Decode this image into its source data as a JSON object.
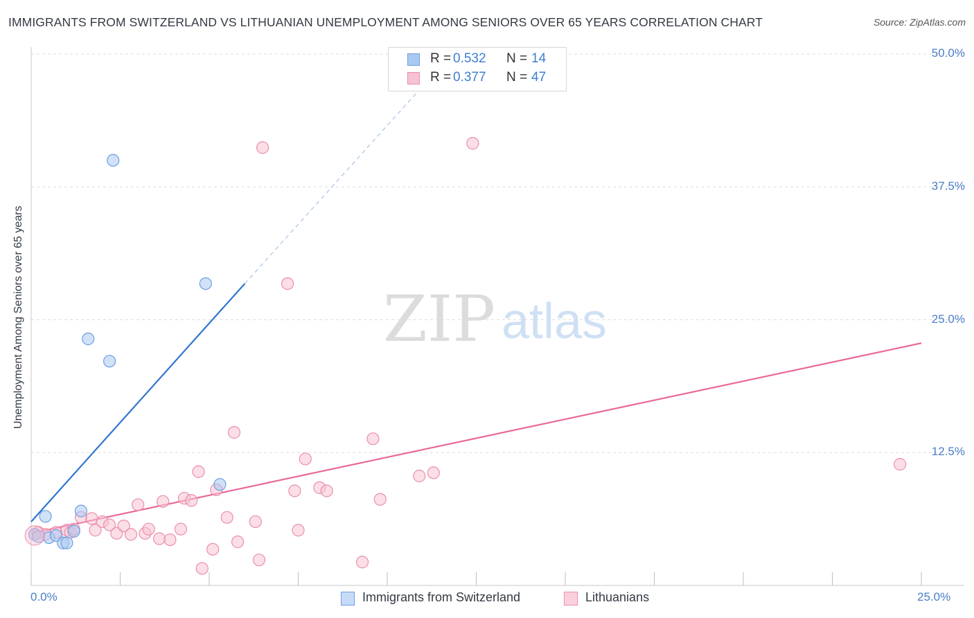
{
  "title": "IMMIGRANTS FROM SWITZERLAND VS LITHUANIAN UNEMPLOYMENT AMONG SENIORS OVER 65 YEARS CORRELATION CHART",
  "source": "Source: ZipAtlas.com",
  "watermark": {
    "zip": "ZIP",
    "atlas": "atlas"
  },
  "legend": {
    "rows": [
      {
        "r_label": "R =",
        "r_value": "0.532",
        "n_label": "N =",
        "n_value": "14",
        "color": "#a9c9f2",
        "border": "#6f9fe0"
      },
      {
        "r_label": "R =",
        "r_value": "0.377",
        "n_label": "N =",
        "n_value": "47",
        "color": "#f7c2d2",
        "border": "#ea8fab"
      }
    ]
  },
  "bottom_legend": [
    {
      "label": "Immigrants from Switzerland",
      "color": "#c5dbf7",
      "border": "#6f9fe0"
    },
    {
      "label": "Lithuanians",
      "color": "#fbd0dd",
      "border": "#ea8fab"
    }
  ],
  "chart_data": {
    "type": "scatter",
    "title": "IMMIGRANTS FROM SWITZERLAND VS LITHUANIAN UNEMPLOYMENT AMONG SENIORS OVER 65 YEARS CORRELATION CHART",
    "xlabel": "",
    "ylabel": "Unemployment Among Seniors over 65 years",
    "xlim": [
      0,
      25
    ],
    "ylim": [
      0,
      50
    ],
    "x_tick_labels": [
      "0.0%",
      "25.0%"
    ],
    "y_ticks": [
      12.5,
      25.0,
      37.5,
      50.0
    ],
    "y_tick_labels": [
      "12.5%",
      "25.0%",
      "37.5%",
      "50.0%"
    ],
    "grid": true,
    "series": [
      {
        "name": "Immigrants from Switzerland",
        "color": "#a9c9f2",
        "edge": "#6f9fe0",
        "line_color": "#2f74d0",
        "points": [
          {
            "x": 0.1,
            "y": 4.8
          },
          {
            "x": 0.2,
            "y": 4.6
          },
          {
            "x": 0.4,
            "y": 6.5
          },
          {
            "x": 0.5,
            "y": 4.5
          },
          {
            "x": 0.7,
            "y": 4.7
          },
          {
            "x": 0.9,
            "y": 4.0
          },
          {
            "x": 1.0,
            "y": 4.0
          },
          {
            "x": 1.2,
            "y": 5.1
          },
          {
            "x": 1.4,
            "y": 7.0
          },
          {
            "x": 1.6,
            "y": 23.2
          },
          {
            "x": 2.2,
            "y": 21.1
          },
          {
            "x": 2.3,
            "y": 40.0
          },
          {
            "x": 4.9,
            "y": 28.4
          },
          {
            "x": 5.3,
            "y": 9.5
          }
        ],
        "trend": {
          "x0": 0,
          "y0": 6.0,
          "x1": 6.0,
          "y1": 28.4,
          "dash_to_x": 11.0,
          "dash_to_y": 47.0
        }
      },
      {
        "name": "Lithuanians",
        "color": "#f7c2d2",
        "edge": "#ea8fab",
        "line_color": "#e8689a",
        "points": [
          {
            "x": 0.1,
            "y": 4.8
          },
          {
            "x": 0.2,
            "y": 5.0
          },
          {
            "x": 0.4,
            "y": 4.8
          },
          {
            "x": 0.7,
            "y": 5.0
          },
          {
            "x": 1.0,
            "y": 5.2
          },
          {
            "x": 1.1,
            "y": 5.0
          },
          {
            "x": 1.2,
            "y": 5.3
          },
          {
            "x": 1.4,
            "y": 6.4
          },
          {
            "x": 1.7,
            "y": 6.3
          },
          {
            "x": 1.8,
            "y": 5.2
          },
          {
            "x": 2.0,
            "y": 6.0
          },
          {
            "x": 2.2,
            "y": 5.7
          },
          {
            "x": 2.4,
            "y": 4.9
          },
          {
            "x": 2.6,
            "y": 5.6
          },
          {
            "x": 2.8,
            "y": 4.8
          },
          {
            "x": 3.0,
            "y": 7.6
          },
          {
            "x": 3.2,
            "y": 4.9
          },
          {
            "x": 3.3,
            "y": 5.3
          },
          {
            "x": 3.6,
            "y": 4.4
          },
          {
            "x": 3.7,
            "y": 7.9
          },
          {
            "x": 3.9,
            "y": 4.3
          },
          {
            "x": 4.2,
            "y": 5.3
          },
          {
            "x": 4.3,
            "y": 8.2
          },
          {
            "x": 4.5,
            "y": 8.0
          },
          {
            "x": 4.7,
            "y": 10.7
          },
          {
            "x": 4.8,
            "y": 1.6
          },
          {
            "x": 5.1,
            "y": 3.4
          },
          {
            "x": 5.2,
            "y": 9.0
          },
          {
            "x": 5.5,
            "y": 6.4
          },
          {
            "x": 5.7,
            "y": 14.4
          },
          {
            "x": 5.8,
            "y": 4.1
          },
          {
            "x": 6.3,
            "y": 6.0
          },
          {
            "x": 6.4,
            "y": 2.4
          },
          {
            "x": 6.5,
            "y": 41.2
          },
          {
            "x": 7.2,
            "y": 28.4
          },
          {
            "x": 7.4,
            "y": 8.9
          },
          {
            "x": 7.5,
            "y": 5.2
          },
          {
            "x": 7.7,
            "y": 11.9
          },
          {
            "x": 8.1,
            "y": 9.2
          },
          {
            "x": 8.3,
            "y": 8.9
          },
          {
            "x": 9.3,
            "y": 2.2
          },
          {
            "x": 9.6,
            "y": 13.8
          },
          {
            "x": 9.8,
            "y": 8.1
          },
          {
            "x": 10.9,
            "y": 10.3
          },
          {
            "x": 11.3,
            "y": 10.6
          },
          {
            "x": 12.4,
            "y": 41.6
          },
          {
            "x": 24.4,
            "y": 11.4
          }
        ],
        "trend": {
          "x0": 0,
          "y0": 4.9,
          "x1": 25.0,
          "y1": 22.8
        }
      }
    ]
  }
}
